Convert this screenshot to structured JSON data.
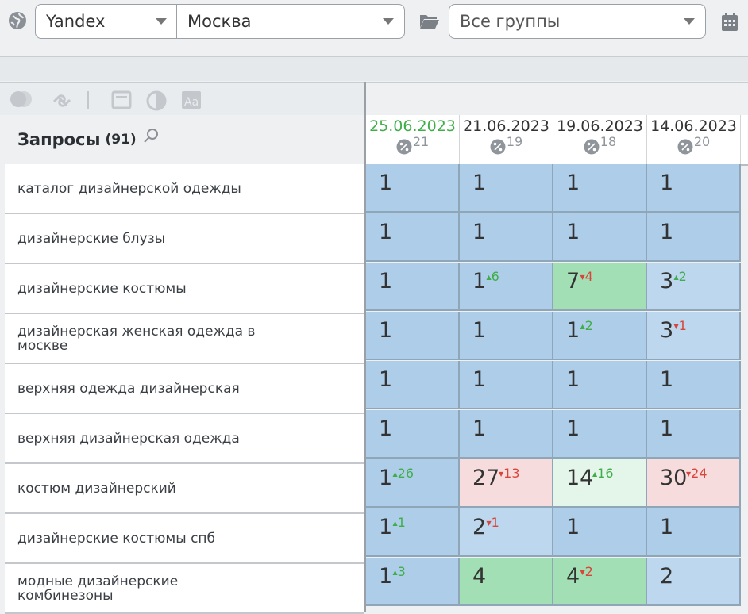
{
  "toolbar": {
    "engine": "Yandex",
    "region": "Москва",
    "group": "Все группы"
  },
  "table": {
    "title": "Запросы",
    "count": "(91)",
    "dates": [
      {
        "date": "25.06.2023",
        "num": "21",
        "active": true
      },
      {
        "date": "21.06.2023",
        "num": "19",
        "active": false
      },
      {
        "date": "19.06.2023",
        "num": "18",
        "active": false
      },
      {
        "date": "14.06.2023",
        "num": "20",
        "active": false
      }
    ],
    "rows": [
      {
        "query": "каталог дизайнерской одежды",
        "cells": [
          {
            "pos": "1",
            "delta": "",
            "dir": "",
            "color": "blue"
          },
          {
            "pos": "1",
            "delta": "",
            "dir": "",
            "color": "blue"
          },
          {
            "pos": "1",
            "delta": "",
            "dir": "",
            "color": "blue"
          },
          {
            "pos": "1",
            "delta": "",
            "dir": "",
            "color": "blue"
          }
        ]
      },
      {
        "query": "дизайнерские блузы",
        "cells": [
          {
            "pos": "1",
            "delta": "",
            "dir": "",
            "color": "blue"
          },
          {
            "pos": "1",
            "delta": "",
            "dir": "",
            "color": "blue"
          },
          {
            "pos": "1",
            "delta": "",
            "dir": "",
            "color": "blue"
          },
          {
            "pos": "1",
            "delta": "",
            "dir": "",
            "color": "blue"
          }
        ]
      },
      {
        "query": "дизайнерские костюмы",
        "cells": [
          {
            "pos": "1",
            "delta": "",
            "dir": "",
            "color": "blue"
          },
          {
            "pos": "1",
            "delta": "6",
            "dir": "up",
            "color": "blue"
          },
          {
            "pos": "7",
            "delta": "4",
            "dir": "down",
            "color": "green"
          },
          {
            "pos": "3",
            "delta": "2",
            "dir": "up",
            "color": "lblue"
          }
        ]
      },
      {
        "query": "дизайнерская женская одежда в москве",
        "cells": [
          {
            "pos": "1",
            "delta": "",
            "dir": "",
            "color": "blue"
          },
          {
            "pos": "1",
            "delta": "",
            "dir": "",
            "color": "blue"
          },
          {
            "pos": "1",
            "delta": "2",
            "dir": "up",
            "color": "blue"
          },
          {
            "pos": "3",
            "delta": "1",
            "dir": "down",
            "color": "lblue"
          }
        ]
      },
      {
        "query": "верхняя одежда дизайнерская",
        "cells": [
          {
            "pos": "1",
            "delta": "",
            "dir": "",
            "color": "blue"
          },
          {
            "pos": "1",
            "delta": "",
            "dir": "",
            "color": "blue"
          },
          {
            "pos": "1",
            "delta": "",
            "dir": "",
            "color": "blue"
          },
          {
            "pos": "1",
            "delta": "",
            "dir": "",
            "color": "blue"
          }
        ]
      },
      {
        "query": "верхняя дизайнерская одежда",
        "cells": [
          {
            "pos": "1",
            "delta": "",
            "dir": "",
            "color": "blue"
          },
          {
            "pos": "1",
            "delta": "",
            "dir": "",
            "color": "blue"
          },
          {
            "pos": "1",
            "delta": "",
            "dir": "",
            "color": "blue"
          },
          {
            "pos": "1",
            "delta": "",
            "dir": "",
            "color": "blue"
          }
        ]
      },
      {
        "query": "костюм дизайнерский",
        "cells": [
          {
            "pos": "1",
            "delta": "26",
            "dir": "up",
            "color": "blue"
          },
          {
            "pos": "27",
            "delta": "13",
            "dir": "down",
            "color": "red"
          },
          {
            "pos": "14",
            "delta": "16",
            "dir": "up",
            "color": "lgreen"
          },
          {
            "pos": "30",
            "delta": "24",
            "dir": "down",
            "color": "red"
          }
        ]
      },
      {
        "query": "дизайнерские костюмы спб",
        "cells": [
          {
            "pos": "1",
            "delta": "1",
            "dir": "up",
            "color": "blue"
          },
          {
            "pos": "2",
            "delta": "1",
            "dir": "down",
            "color": "lblue"
          },
          {
            "pos": "1",
            "delta": "",
            "dir": "",
            "color": "blue"
          },
          {
            "pos": "1",
            "delta": "",
            "dir": "",
            "color": "blue"
          }
        ]
      },
      {
        "query": "модные дизайнерские комбинезоны",
        "cells": [
          {
            "pos": "1",
            "delta": "3",
            "dir": "up",
            "color": "blue"
          },
          {
            "pos": "4",
            "delta": "",
            "dir": "",
            "color": "green"
          },
          {
            "pos": "4",
            "delta": "2",
            "dir": "down",
            "color": "green"
          },
          {
            "pos": "2",
            "delta": "",
            "dir": "",
            "color": "lblue"
          }
        ]
      }
    ]
  },
  "colors": {
    "blue": "#aecde9",
    "lblue": "#bcd7ee",
    "green": "#a2dfb4",
    "lgreen": "#e4f5e9",
    "red": "#f6dcdc",
    "up": "#3fae49",
    "down": "#d9453a"
  },
  "icons": [
    "globe-icon",
    "folder-icon",
    "calendar-icon",
    "toggle-icon",
    "link-icon",
    "window-icon",
    "contrast-icon",
    "font-icon",
    "search-icon",
    "percent-icon",
    "chevron-down-icon"
  ]
}
